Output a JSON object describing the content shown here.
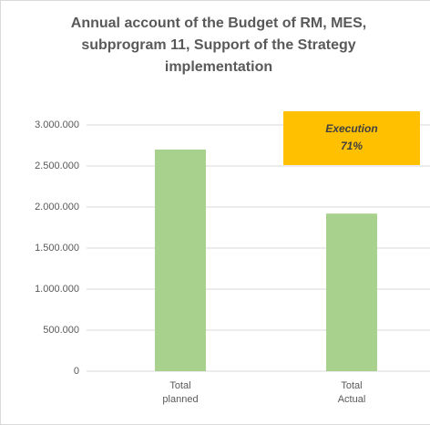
{
  "chart_data": {
    "type": "bar",
    "title": "Annual account of the Budget of RM, MES, subprogram 11, Support of the Strategy implementation",
    "categories": [
      "Total planned",
      "Total Actual"
    ],
    "values": [
      2700000,
      1920000
    ],
    "color": "#a9d18e",
    "ylim": [
      0,
      3000000
    ],
    "yticks": [
      0,
      {
        "value": 500000,
        "label": "500.000"
      },
      {
        "value": 1000000,
        "label": "1.000.000"
      },
      {
        "value": 1500000,
        "label": "1.500.000"
      },
      {
        "value": 2000000,
        "label": "2.000.000"
      },
      {
        "value": 2500000,
        "label": "2.500.000"
      },
      {
        "value": 3000000,
        "label": "3.000.000"
      }
    ],
    "grid": true,
    "annotation": [
      "Execution",
      "71%"
    ]
  }
}
